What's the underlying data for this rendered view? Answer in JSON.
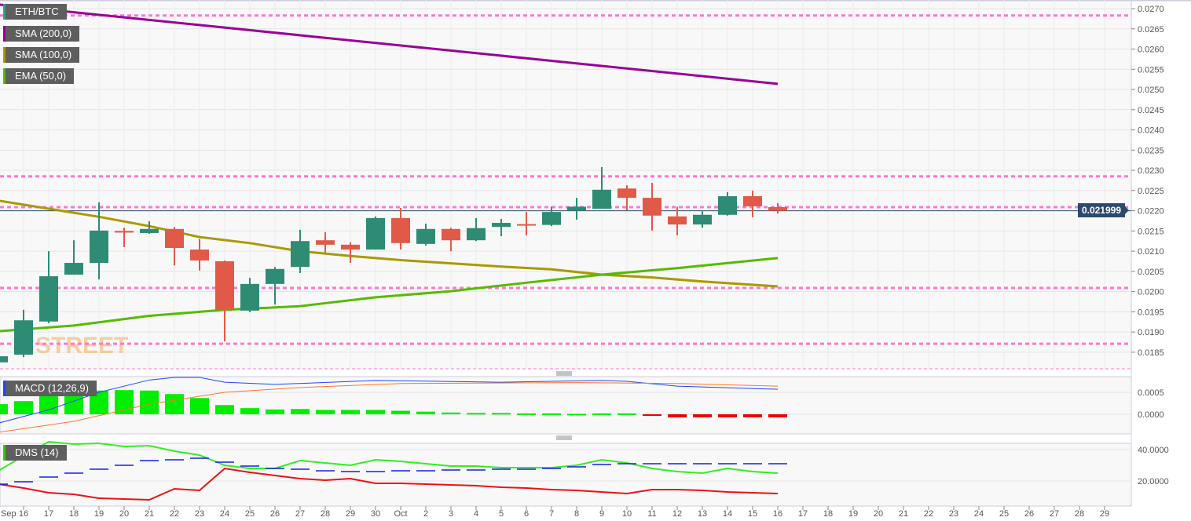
{
  "legend": [
    {
      "label": "ETH/BTC",
      "color": "#26a69a"
    },
    {
      "label": "SMA (200,0)",
      "color": "#990099"
    },
    {
      "label": "SMA (100,0)",
      "color": "#aa9900"
    },
    {
      "label": "EMA (50,0)",
      "color": "#55bb00"
    }
  ],
  "indicators": {
    "macd_label": "MACD (12,26,9)",
    "macd_color": "#2244ff",
    "dms_label": "DMS (14)",
    "dms_color": "#33cc00"
  },
  "current_price": "0.021999",
  "logo_text": "STREET",
  "chart_data": [
    {
      "type": "candlestick",
      "title": "ETH/BTC",
      "ylim": [
        0.0181,
        0.0272
      ],
      "yticks": [
        "0.0185",
        "0.0190",
        "0.0195",
        "0.0200",
        "0.0205",
        "0.0210",
        "0.0215",
        "0.0220",
        "0.0225",
        "0.0230",
        "0.0235",
        "0.0240",
        "0.0245",
        "0.0250",
        "0.0255",
        "0.0260",
        "0.0265",
        "0.0270"
      ],
      "xticks": [
        "Sep",
        "16",
        "17",
        "18",
        "19",
        "20",
        "21",
        "22",
        "23",
        "24",
        "25",
        "26",
        "27",
        "28",
        "29",
        "30",
        "Oct",
        "2",
        "3",
        "4",
        "5",
        "6",
        "7",
        "8",
        "9",
        "10",
        "11",
        "12",
        "13",
        "14",
        "15",
        "16",
        "17",
        "18",
        "19",
        "20",
        "21",
        "22",
        "23",
        "24",
        "25",
        "26",
        "27",
        "28",
        "29"
      ],
      "dates": [
        "Sep 15",
        "Sep 16",
        "Sep 17",
        "Sep 18",
        "Sep 19",
        "Sep 20",
        "Sep 21",
        "Sep 22",
        "Sep 23",
        "Sep 24",
        "Sep 25",
        "Sep 26",
        "Sep 27",
        "Sep 28",
        "Sep 29",
        "Sep 30",
        "Oct 1",
        "Oct 2",
        "Oct 3",
        "Oct 4",
        "Oct 5",
        "Oct 6",
        "Oct 7",
        "Oct 8",
        "Oct 9",
        "Oct 10",
        "Oct 11",
        "Oct 12",
        "Oct 13",
        "Oct 14",
        "Oct 15",
        "Oct 16"
      ],
      "ohlc": [
        [
          0.01825,
          0.01845,
          0.0182,
          0.0184
        ],
        [
          0.01844,
          0.01955,
          0.01838,
          0.01929
        ],
        [
          0.01926,
          0.021,
          0.01922,
          0.02038
        ],
        [
          0.02042,
          0.02127,
          0.02042,
          0.02071
        ],
        [
          0.02071,
          0.02221,
          0.0203,
          0.02151
        ],
        [
          0.0215,
          0.02158,
          0.0211,
          0.02146
        ],
        [
          0.02145,
          0.02174,
          0.02143,
          0.02155
        ],
        [
          0.02155,
          0.0216,
          0.02065,
          0.02108
        ],
        [
          0.02104,
          0.0213,
          0.02052,
          0.02077
        ],
        [
          0.02075,
          0.02077,
          0.01877,
          0.01955
        ],
        [
          0.01953,
          0.02034,
          0.01949,
          0.02019
        ],
        [
          0.02019,
          0.02061,
          0.01968,
          0.02056
        ],
        [
          0.02061,
          0.02153,
          0.02046,
          0.02125
        ],
        [
          0.02127,
          0.02147,
          0.02096,
          0.02116
        ],
        [
          0.02116,
          0.02122,
          0.02071,
          0.02104
        ],
        [
          0.02104,
          0.02186,
          0.02104,
          0.02182
        ],
        [
          0.02182,
          0.02207,
          0.02104,
          0.0212
        ],
        [
          0.02118,
          0.02168,
          0.02114,
          0.02155
        ],
        [
          0.02155,
          0.02158,
          0.021,
          0.02127
        ],
        [
          0.02127,
          0.02182,
          0.02125,
          0.02157
        ],
        [
          0.0216,
          0.0218,
          0.02137,
          0.0217
        ],
        [
          0.02167,
          0.02197,
          0.02139,
          0.02165
        ],
        [
          0.02165,
          0.0221,
          0.02162,
          0.02197
        ],
        [
          0.022,
          0.02232,
          0.02178,
          0.0221
        ],
        [
          0.02205,
          0.02308,
          0.02205,
          0.02252
        ],
        [
          0.02255,
          0.02263,
          0.02201,
          0.02232
        ],
        [
          0.02232,
          0.02269,
          0.02151,
          0.02188
        ],
        [
          0.02186,
          0.0221,
          0.02139,
          0.02166
        ],
        [
          0.02166,
          0.02201,
          0.02158,
          0.0219
        ],
        [
          0.0219,
          0.02246,
          0.02188,
          0.02236
        ],
        [
          0.02236,
          0.0225,
          0.02184,
          0.02211
        ],
        [
          0.02209,
          0.02219,
          0.02193,
          0.022
        ]
      ],
      "sma200": [
        [
          15,
          0.0271
        ],
        [
          46,
          0.02514
        ]
      ],
      "sma100": [
        [
          15,
          0.02225
        ],
        [
          17,
          0.02205
        ],
        [
          19,
          0.02185
        ],
        [
          21,
          0.02162
        ],
        [
          23,
          0.02135
        ],
        [
          25,
          0.0212
        ],
        [
          27,
          0.021
        ],
        [
          29,
          0.02088
        ],
        [
          31,
          0.02078
        ],
        [
          33,
          0.0207
        ],
        [
          35,
          0.02062
        ],
        [
          37,
          0.02055
        ],
        [
          39,
          0.02042
        ],
        [
          41,
          0.02035
        ],
        [
          43,
          0.02025
        ],
        [
          46,
          0.02013
        ]
      ],
      "ema50": [
        [
          15,
          0.01902
        ],
        [
          18,
          0.01916
        ],
        [
          21,
          0.0194
        ],
        [
          24,
          0.01955
        ],
        [
          27,
          0.01964
        ],
        [
          30,
          0.01986
        ],
        [
          33,
          0.02001
        ],
        [
          36,
          0.02022
        ],
        [
          39,
          0.02042
        ],
        [
          42,
          0.02058
        ],
        [
          46,
          0.02083
        ]
      ],
      "levels": [
        0.02683,
        0.02285,
        0.02209,
        0.02009,
        0.01871
      ],
      "colors": {
        "up": "#2e8b74",
        "down": "#e05a47",
        "level": "#ff77cc",
        "last": "#2c4a6e"
      }
    },
    {
      "type": "bar+line",
      "title": "MACD (12,26,9)",
      "ylim": [
        -0.00045,
        0.00095
      ],
      "yticks": [
        "0.0000",
        "0.0005"
      ],
      "histogram": [
        0.00023,
        0.0003,
        0.00046,
        0.00054,
        0.00054,
        0.00055,
        0.00054,
        0.00046,
        0.00037,
        0.00021,
        0.00014,
        0.00011,
        0.00012,
        0.0001,
        0.0001,
        0.0001,
        8e-05,
        6e-05,
        4e-05,
        3e-05,
        3e-05,
        2e-05,
        2e-05,
        1e-05,
        2e-05,
        2e-05,
        -1e-05,
        -7e-05,
        -7e-05,
        -7e-05,
        -7e-05,
        -7e-05
      ],
      "macd": [
        [
          15,
          -0.0002
        ],
        [
          17,
          0.0001
        ],
        [
          19,
          0.0005
        ],
        [
          21,
          0.00078
        ],
        [
          22,
          0.00084
        ],
        [
          23,
          0.00084
        ],
        [
          24,
          0.00073
        ],
        [
          26,
          0.00068
        ],
        [
          30,
          0.00077
        ],
        [
          35,
          0.00073
        ],
        [
          39,
          0.00077
        ],
        [
          40,
          0.00075
        ],
        [
          42,
          0.00064
        ],
        [
          46,
          0.00057
        ]
      ],
      "signal": [
        [
          15,
          -0.00041
        ],
        [
          18,
          -0.00016
        ],
        [
          21,
          0.00023
        ],
        [
          24,
          0.0005
        ],
        [
          27,
          0.00061
        ],
        [
          31,
          0.0007
        ],
        [
          38,
          0.00072
        ],
        [
          42,
          0.0007
        ],
        [
          46,
          0.00064
        ]
      ]
    },
    {
      "type": "line",
      "title": "DMS (14)",
      "ylim": [
        4,
        44
      ],
      "yticks": [
        "20.0000",
        "40.0000"
      ],
      "plus_di": [
        26.5,
        36,
        45,
        43.5,
        44,
        42,
        42.5,
        39,
        36.5,
        30,
        28,
        28,
        33,
        31.5,
        30,
        33.5,
        32.5,
        31,
        29.5,
        29.5,
        28.5,
        28.5,
        28.5,
        30,
        33.5,
        31.5,
        28,
        26,
        25,
        28,
        26,
        25
      ],
      "minus_di": [
        18,
        15.5,
        12.5,
        11.5,
        9,
        8.5,
        8,
        15,
        14,
        28,
        25.5,
        23.5,
        21.5,
        20.5,
        21.5,
        18.5,
        18.5,
        18,
        17.5,
        17,
        16,
        15.5,
        14.5,
        14,
        13,
        12,
        14.5,
        14.5,
        14,
        13,
        12.5,
        12
      ],
      "adx": [
        18,
        19.5,
        22.5,
        25,
        27.5,
        30,
        33,
        33.5,
        34.5,
        32,
        29.5,
        28,
        27.5,
        26.5,
        26,
        26,
        26.5,
        26.5,
        27,
        27,
        27.5,
        27.5,
        28,
        29,
        30.5,
        31,
        31,
        31,
        31,
        31,
        31,
        31
      ]
    }
  ]
}
